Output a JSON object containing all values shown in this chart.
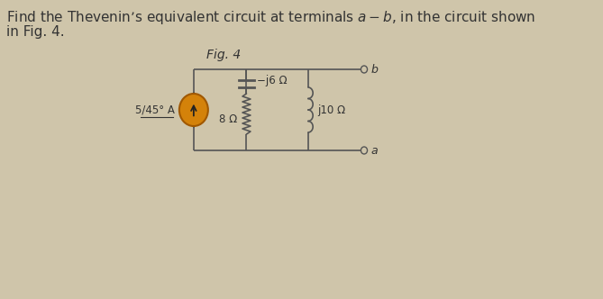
{
  "title_line1": "Find the Thevenin’s equivalent circuit at terminals $a - b$, in the circuit shown",
  "title_line2": "in Fig. 4.",
  "title_fontsize": 11,
  "background_color": "#cfc5aa",
  "fig_caption": "Fig. 4",
  "source_label": "5/45° A",
  "r1_label": "8 Ω",
  "r2_label": "−j6 Ω",
  "r3_label": "j10 Ω",
  "terminal_a": "a",
  "terminal_b": "b",
  "circuit_color": "#555555",
  "source_fill": "#d4820a",
  "source_edge": "#a05800"
}
